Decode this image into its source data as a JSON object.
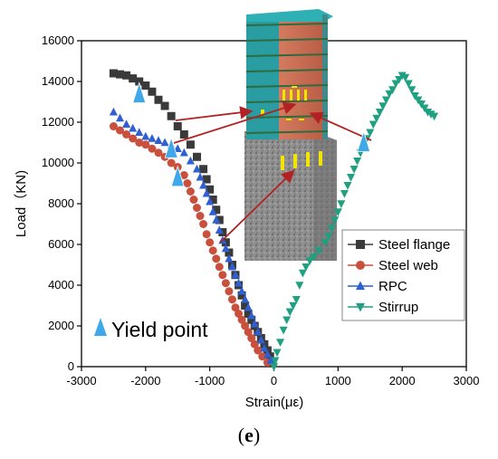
{
  "caption": {
    "open": "(",
    "letter": "e",
    "close": ")"
  },
  "chart_data": {
    "type": "scatter",
    "xlabel": "Strain(με)",
    "ylabel": "Load（KN)",
    "xlim": [
      -3000,
      3000
    ],
    "ylim": [
      0,
      16000
    ],
    "xticks": [
      "-3000",
      "-2000",
      "-1000",
      "0",
      "1000",
      "2000",
      "3000"
    ],
    "yticks": [
      "0",
      "2000",
      "4000",
      "6000",
      "8000",
      "10000",
      "12000",
      "14000",
      "16000"
    ],
    "grid": false,
    "legend_position": "bottom-right",
    "series": [
      {
        "name": "Steel flange",
        "color": "#3a3a3a",
        "marker": "square",
        "points": [
          [
            -2500,
            14400
          ],
          [
            -2400,
            14350
          ],
          [
            -2300,
            14300
          ],
          [
            -2200,
            14150
          ],
          [
            -2100,
            14000
          ],
          [
            -2000,
            13800
          ],
          [
            -1900,
            13500
          ],
          [
            -1800,
            13100
          ],
          [
            -1700,
            12800
          ],
          [
            -1600,
            12300
          ],
          [
            -1500,
            11800
          ],
          [
            -1400,
            11400
          ],
          [
            -1300,
            10900
          ],
          [
            -1200,
            10300
          ],
          [
            -1100,
            9700
          ],
          [
            -1050,
            9200
          ],
          [
            -1000,
            8700
          ],
          [
            -950,
            8200
          ],
          [
            -900,
            7700
          ],
          [
            -850,
            7200
          ],
          [
            -800,
            6600
          ],
          [
            -750,
            6100
          ],
          [
            -700,
            5600
          ],
          [
            -650,
            5000
          ],
          [
            -600,
            4500
          ],
          [
            -550,
            4000
          ],
          [
            -500,
            3500
          ],
          [
            -450,
            3000
          ],
          [
            -400,
            2600
          ],
          [
            -350,
            2300
          ],
          [
            -300,
            2000
          ],
          [
            -250,
            1700
          ],
          [
            -200,
            1400
          ],
          [
            -150,
            1100
          ],
          [
            -100,
            800
          ],
          [
            -60,
            500
          ],
          [
            -20,
            200
          ]
        ]
      },
      {
        "name": "Steel web",
        "color": "#c8503c",
        "marker": "circle",
        "points": [
          [
            -2500,
            11800
          ],
          [
            -2400,
            11600
          ],
          [
            -2300,
            11400
          ],
          [
            -2200,
            11200
          ],
          [
            -2100,
            11000
          ],
          [
            -2000,
            10900
          ],
          [
            -1900,
            10700
          ],
          [
            -1800,
            10500
          ],
          [
            -1700,
            10300
          ],
          [
            -1600,
            10000
          ],
          [
            -1500,
            9800
          ],
          [
            -1400,
            9400
          ],
          [
            -1350,
            9000
          ],
          [
            -1300,
            8600
          ],
          [
            -1250,
            8200
          ],
          [
            -1200,
            7800
          ],
          [
            -1150,
            7400
          ],
          [
            -1100,
            7000
          ],
          [
            -1050,
            6500
          ],
          [
            -1000,
            6100
          ],
          [
            -950,
            5700
          ],
          [
            -900,
            5300
          ],
          [
            -850,
            4900
          ],
          [
            -800,
            4500
          ],
          [
            -750,
            4100
          ],
          [
            -700,
            3700
          ],
          [
            -650,
            3300
          ],
          [
            -600,
            2900
          ],
          [
            -550,
            2600
          ],
          [
            -500,
            2300
          ],
          [
            -450,
            2000
          ],
          [
            -400,
            1700
          ],
          [
            -350,
            1400
          ],
          [
            -300,
            1100
          ],
          [
            -250,
            800
          ],
          [
            -180,
            500
          ],
          [
            -100,
            200
          ]
        ]
      },
      {
        "name": "RPC",
        "color": "#2f5fd0",
        "marker": "triangle-up",
        "points": [
          [
            -2500,
            12500
          ],
          [
            -2400,
            12200
          ],
          [
            -2300,
            11900
          ],
          [
            -2200,
            11700
          ],
          [
            -2100,
            11500
          ],
          [
            -2000,
            11300
          ],
          [
            -1900,
            11200
          ],
          [
            -1800,
            11100
          ],
          [
            -1700,
            11000
          ],
          [
            -1600,
            10900
          ],
          [
            -1500,
            10700
          ],
          [
            -1400,
            10500
          ],
          [
            -1300,
            10100
          ],
          [
            -1200,
            9700
          ],
          [
            -1150,
            9300
          ],
          [
            -1100,
            8900
          ],
          [
            -1050,
            8500
          ],
          [
            -1000,
            8100
          ],
          [
            -950,
            7600
          ],
          [
            -900,
            7200
          ],
          [
            -850,
            6700
          ],
          [
            -800,
            6200
          ],
          [
            -750,
            5800
          ],
          [
            -700,
            5300
          ],
          [
            -650,
            4900
          ],
          [
            -600,
            4500
          ],
          [
            -550,
            4100
          ],
          [
            -500,
            3700
          ],
          [
            -450,
            3300
          ],
          [
            -400,
            2900
          ],
          [
            -350,
            2500
          ],
          [
            -300,
            2100
          ],
          [
            -250,
            1700
          ],
          [
            -200,
            1300
          ],
          [
            -150,
            900
          ],
          [
            -100,
            600
          ],
          [
            -50,
            300
          ]
        ]
      },
      {
        "name": "Stirrup",
        "color": "#1fa080",
        "marker": "triangle-down",
        "points": [
          [
            0,
            0
          ],
          [
            20,
            300
          ],
          [
            50,
            700
          ],
          [
            100,
            1200
          ],
          [
            150,
            1800
          ],
          [
            200,
            2300
          ],
          [
            250,
            2700
          ],
          [
            300,
            3000
          ],
          [
            350,
            3300
          ],
          [
            400,
            4000
          ],
          [
            450,
            4600
          ],
          [
            500,
            4900
          ],
          [
            560,
            5200
          ],
          [
            620,
            5400
          ],
          [
            700,
            5700
          ],
          [
            800,
            6100
          ],
          [
            850,
            6400
          ],
          [
            900,
            6800
          ],
          [
            950,
            7200
          ],
          [
            1000,
            7600
          ],
          [
            1050,
            8000
          ],
          [
            1100,
            8500
          ],
          [
            1150,
            8900
          ],
          [
            1200,
            9300
          ],
          [
            1250,
            9700
          ],
          [
            1300,
            10100
          ],
          [
            1350,
            10500
          ],
          [
            1400,
            10800
          ],
          [
            1450,
            11200
          ],
          [
            1500,
            11500
          ],
          [
            1550,
            11900
          ],
          [
            1600,
            12200
          ],
          [
            1650,
            12500
          ],
          [
            1700,
            12800
          ],
          [
            1750,
            13100
          ],
          [
            1800,
            13400
          ],
          [
            1850,
            13600
          ],
          [
            1900,
            13900
          ],
          [
            1950,
            14100
          ],
          [
            2000,
            14300
          ],
          [
            2050,
            14200
          ],
          [
            2100,
            13900
          ],
          [
            2150,
            13600
          ],
          [
            2200,
            13300
          ],
          [
            2250,
            13100
          ],
          [
            2300,
            12900
          ],
          [
            2350,
            12700
          ],
          [
            2400,
            12500
          ],
          [
            2450,
            12400
          ],
          [
            2500,
            12300
          ]
        ]
      }
    ],
    "yield_points": [
      [
        -2100,
        13400
      ],
      [
        -1600,
        10700
      ],
      [
        -1500,
        9300
      ],
      [
        1400,
        11000
      ]
    ],
    "yield_label": "Yield point",
    "yield_color": "#3fa8e8"
  }
}
